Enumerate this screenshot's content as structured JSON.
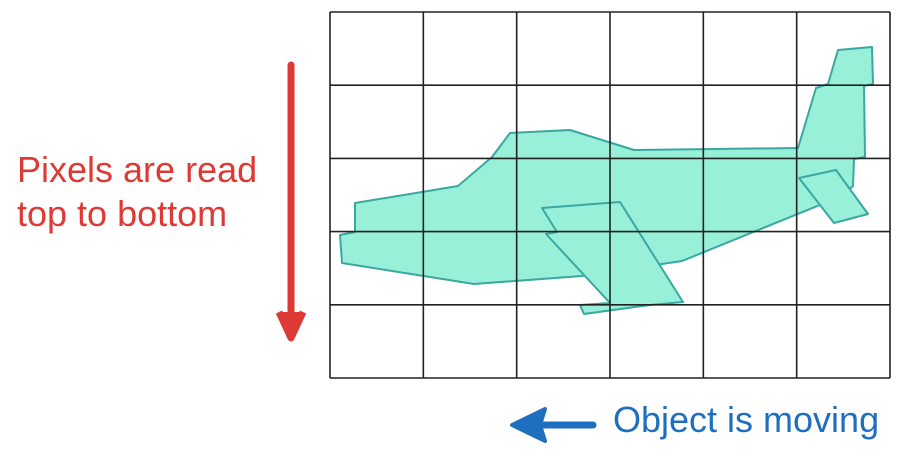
{
  "labels": {
    "scan_direction_line1": "Pixels are read",
    "scan_direction_line2": "top to bottom",
    "motion_direction": "Object is moving"
  },
  "grid": {
    "columns": 6,
    "rows": 5
  },
  "colors": {
    "scan_arrow": "#de3a35",
    "motion_arrow": "#1f6fc0",
    "airplane_fill": "#98f0d8",
    "airplane_stroke": "#3aa7a3",
    "grid_line": "#222222"
  },
  "icons": {
    "object": "airplane-icon",
    "scan_arrow": "down-arrow-icon",
    "motion_arrow": "left-arrow-icon"
  }
}
